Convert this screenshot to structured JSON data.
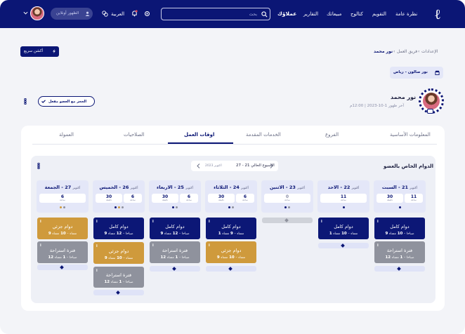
{
  "header": {
    "logo": "ℓ",
    "nav": [
      "نظرة عامة",
      "التقويم",
      "كتالوج",
      "مبيعاتك",
      "التقارير",
      "عملاؤك"
    ],
    "search_placeholder": "بحث",
    "language": "العربية",
    "team_visibility": "الظهور أونلاين"
  },
  "breadcrumb": {
    "items": [
      "الإعدادات",
      "فريق العمل",
      "نور محمد"
    ],
    "separator": "‹"
  },
  "quick_action": "أكشن سريع",
  "branch_selector": "نور صالون - رياض",
  "profile": {
    "name": "نور محمد",
    "meta": "آخر ظهور 1-10-2023 | 12:00م",
    "booking_toggle": "الحجز مع العضو مفعل"
  },
  "tabs": [
    {
      "label": "المعلومات الأساسية"
    },
    {
      "label": "الفروع"
    },
    {
      "label": "الخدمات المقدمة"
    },
    {
      "label": "اوقات العمل"
    },
    {
      "label": "الصلاحيات"
    },
    {
      "label": "العمولة"
    }
  ],
  "schedule": {
    "title": "الدوام الخاص بالعضو",
    "week_label": "الاسبوع الحالي 21 - 27",
    "week_sub": "اكتوبر 2023",
    "days": [
      {
        "name": "السبت",
        "num": "21",
        "month": "أكتوبر",
        "stats": [
          {
            "v": "11",
            "l": "ساعة"
          },
          {
            "v": "30",
            "l": "دقيقة"
          }
        ]
      },
      {
        "name": "الاحد",
        "num": "22",
        "month": "أكتوبر",
        "stats": [
          {
            "v": "11",
            "l": "ساعة"
          }
        ]
      },
      {
        "name": "الاثنين",
        "num": "23",
        "month": "أكتوبر",
        "stats": [
          {
            "v": "0",
            "l": "ساعة"
          }
        ]
      },
      {
        "name": "الثلاثاء",
        "num": "24",
        "month": "أكتوبر",
        "stats": [
          {
            "v": "6",
            "l": "ساعة"
          },
          {
            "v": "30",
            "l": "دقيقة"
          }
        ]
      },
      {
        "name": "الاربعاء",
        "num": "25",
        "month": "أكتوبر",
        "stats": [
          {
            "v": "6",
            "l": "ساعة"
          },
          {
            "v": "30",
            "l": "دقيقة"
          }
        ]
      },
      {
        "name": "الخميس",
        "num": "26",
        "month": "أكتوبر",
        "stats": [
          {
            "v": "6",
            "l": "ساعة"
          },
          {
            "v": "30",
            "l": "دقيقة"
          }
        ]
      },
      {
        "name": "الجمعة",
        "num": "27",
        "month": "أكتوبر",
        "stats": [
          {
            "v": "6",
            "l": "ساعة"
          }
        ]
      }
    ],
    "shift_full": "دوام كامل",
    "shift_partial": "دوام جزئي",
    "shift_rest": "فترة استراحة",
    "time_a": "9",
    "time_b": "10",
    "time_c": "12",
    "time_d": "1",
    "am": "صباحا",
    "pm": "مساء",
    "info_icon": "i"
  },
  "colors": {
    "primary": "#0b1675",
    "gold": "#cf9a3c",
    "gray": "#8f929d"
  }
}
